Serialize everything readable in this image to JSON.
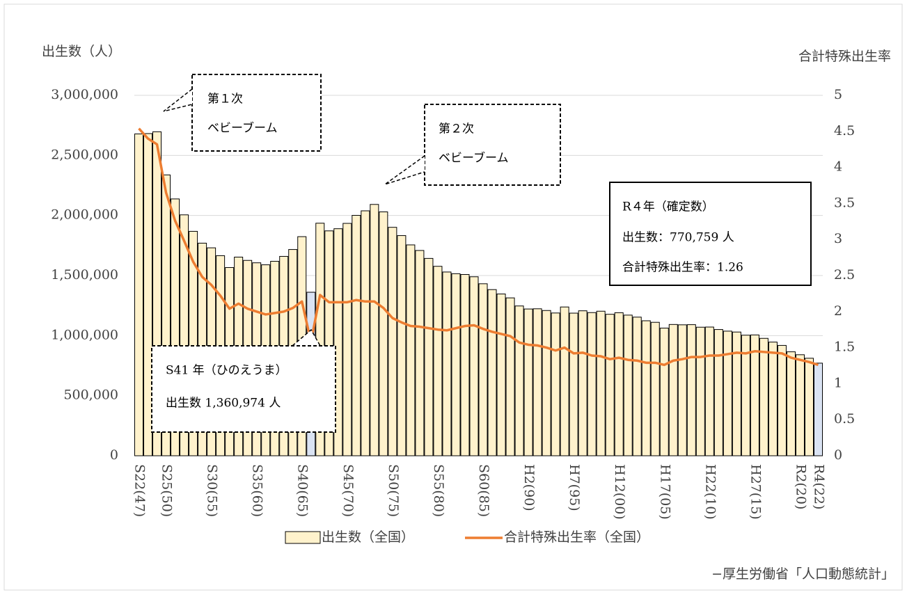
{
  "chart_data": {
    "type": "bar",
    "y_title": "出生数（人）",
    "y2_title": "合計特殊出生率",
    "source": "−厚生労働省「人口動態統計」",
    "categories": [
      "S22(47)",
      null,
      null,
      "S25(50)",
      null,
      null,
      null,
      null,
      "S30(55)",
      null,
      null,
      null,
      null,
      "S35(60)",
      null,
      null,
      null,
      null,
      "S40(65)",
      null,
      null,
      null,
      null,
      "S45(70)",
      null,
      null,
      null,
      null,
      "S50(75)",
      null,
      null,
      null,
      null,
      "S55(80)",
      null,
      null,
      null,
      null,
      "S60(85)",
      null,
      null,
      null,
      null,
      "H2(90)",
      null,
      null,
      null,
      null,
      "H7(95)",
      null,
      null,
      null,
      null,
      "H12(00)",
      null,
      null,
      null,
      null,
      "H17(05)",
      null,
      null,
      null,
      null,
      "H22(10)",
      null,
      null,
      null,
      null,
      "H27(15)",
      null,
      null,
      null,
      null,
      "R2(20)",
      null,
      "R4(22)"
    ],
    "series": [
      {
        "name": "出生数（全国）",
        "type": "bar",
        "colors": [
          "#fff2cc",
          "#fff2cc",
          "#fff2cc",
          "#fff2cc",
          "#fff2cc",
          "#fff2cc",
          "#fff2cc",
          "#fff2cc",
          "#fff2cc",
          "#fff2cc",
          "#fff2cc",
          "#fff2cc",
          "#fff2cc",
          "#fff2cc",
          "#fff2cc",
          "#fff2cc",
          "#fff2cc",
          "#fff2cc",
          "#fff2cc",
          "#dae3f3",
          "#fff2cc",
          "#fff2cc",
          "#fff2cc",
          "#fff2cc",
          "#fff2cc",
          "#fff2cc",
          "#fff2cc",
          "#fff2cc",
          "#fff2cc",
          "#fff2cc",
          "#fff2cc",
          "#fff2cc",
          "#fff2cc",
          "#fff2cc",
          "#fff2cc",
          "#fff2cc",
          "#fff2cc",
          "#fff2cc",
          "#fff2cc",
          "#fff2cc",
          "#fff2cc",
          "#fff2cc",
          "#fff2cc",
          "#fff2cc",
          "#fff2cc",
          "#fff2cc",
          "#fff2cc",
          "#fff2cc",
          "#fff2cc",
          "#fff2cc",
          "#fff2cc",
          "#fff2cc",
          "#fff2cc",
          "#fff2cc",
          "#fff2cc",
          "#fff2cc",
          "#fff2cc",
          "#fff2cc",
          "#fff2cc",
          "#fff2cc",
          "#fff2cc",
          "#fff2cc",
          "#fff2cc",
          "#fff2cc",
          "#fff2cc",
          "#fff2cc",
          "#fff2cc",
          "#fff2cc",
          "#fff2cc",
          "#fff2cc",
          "#fff2cc",
          "#fff2cc",
          "#fff2cc",
          "#fff2cc",
          "#fff2cc",
          "#dae3f3"
        ],
        "values": [
          2678792,
          2681624,
          2696638,
          2337507,
          2137689,
          2005162,
          1868040,
          1769580,
          1730692,
          1665278,
          1566713,
          1653469,
          1626088,
          1606041,
          1589372,
          1618616,
          1659521,
          1716761,
          1823697,
          1360974,
          1935647,
          1871839,
          1889815,
          1934239,
          2000973,
          2038682,
          2091983,
          2029989,
          1901440,
          1832617,
          1755100,
          1708643,
          1642580,
          1576889,
          1529455,
          1515392,
          1508687,
          1489780,
          1431577,
          1382946,
          1346658,
          1314006,
          1246802,
          1221585,
          1223245,
          1208989,
          1188282,
          1238328,
          1187064,
          1206555,
          1191665,
          1203147,
          1177669,
          1190547,
          1170662,
          1153855,
          1123610,
          1110721,
          1062530,
          1092674,
          1089818,
          1091156,
          1070036,
          1071305,
          1050806,
          1037231,
          1029817,
          1003609,
          1005721,
          977242,
          946146,
          918400,
          865239,
          840835,
          811622,
          770759
        ]
      },
      {
        "name": "合計特殊出生率（全国）",
        "type": "line",
        "color": "#ed7d31",
        "axis": "y2",
        "values": [
          4.54,
          4.4,
          4.32,
          3.65,
          3.26,
          2.98,
          2.69,
          2.48,
          2.37,
          2.22,
          2.04,
          2.11,
          2.04,
          2.0,
          1.96,
          1.98,
          2.0,
          2.05,
          2.14,
          1.58,
          2.23,
          2.13,
          2.13,
          2.13,
          2.16,
          2.14,
          2.14,
          2.05,
          1.91,
          1.85,
          1.8,
          1.79,
          1.77,
          1.75,
          1.74,
          1.77,
          1.8,
          1.81,
          1.76,
          1.72,
          1.69,
          1.66,
          1.57,
          1.54,
          1.53,
          1.5,
          1.46,
          1.5,
          1.42,
          1.43,
          1.39,
          1.38,
          1.34,
          1.36,
          1.33,
          1.32,
          1.29,
          1.29,
          1.26,
          1.32,
          1.34,
          1.37,
          1.37,
          1.39,
          1.39,
          1.41,
          1.43,
          1.42,
          1.45,
          1.44,
          1.43,
          1.42,
          1.36,
          1.33,
          1.3,
          1.26
        ]
      }
    ],
    "ylim": [
      0,
      3000000
    ],
    "yticks": [
      0,
      {
        "value": 500000,
        "label": "500,000"
      },
      {
        "value": 1000000,
        "label": "1,000,000"
      },
      {
        "value": 1500000,
        "label": "1,500,000"
      },
      {
        "value": 2000000,
        "label": "2,000,000"
      },
      {
        "value": 2500000,
        "label": "2,500,000"
      },
      {
        "value": 3000000,
        "label": "3,000,000"
      }
    ],
    "y2lim": [
      0,
      5
    ],
    "y2ticks": [
      0,
      0.5,
      1,
      1.5,
      2,
      2.5,
      3,
      3.5,
      4,
      4.5,
      5
    ],
    "grid": true,
    "legend": "bottom",
    "annotations": [
      {
        "lines": [
          "第１次",
          "ベビーブーム"
        ]
      },
      {
        "lines": [
          "第２次",
          "ベビーブーム"
        ]
      },
      {
        "lines": [
          "R４年（確定数）",
          "出生数：770,759 人",
          "合計特殊出生率：1.26"
        ]
      },
      {
        "lines": [
          "S41 年（ひのえうま）",
          "出生数 1,360,974 人"
        ]
      }
    ]
  }
}
